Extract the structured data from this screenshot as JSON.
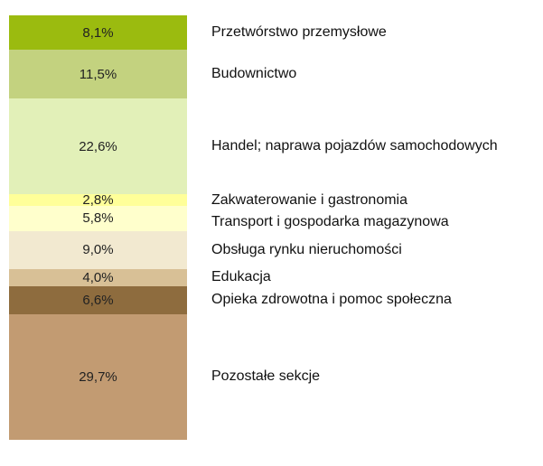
{
  "chart_data": {
    "type": "stacked-bar",
    "categories": [
      "Przetwórstwo przemysłowe",
      "Budownictwo",
      "Handel; naprawa pojazdów samochodowych",
      "Zakwaterowanie i gastronomia",
      "Transport i gospodarka magazynowa",
      "Obsługa rynku nieruchomości",
      "Edukacja",
      "Opieka zdrowotna i pomoc społeczna",
      "Pozostałe sekcje"
    ],
    "values": [
      8.1,
      11.5,
      22.6,
      2.8,
      5.8,
      9.0,
      4.0,
      6.6,
      29.7
    ],
    "value_labels": [
      "8,1%",
      "11,5%",
      "22,6%",
      "2,8%",
      "5,8%",
      "9,0%",
      "4,0%",
      "6,6%",
      "29,7%"
    ],
    "colors": [
      "#9bbb0f",
      "#c3d27f",
      "#e2f0b8",
      "#ffff99",
      "#ffffcc",
      "#f2e9d0",
      "#d8c096",
      "#8e6c3e",
      "#c29b72"
    ]
  }
}
